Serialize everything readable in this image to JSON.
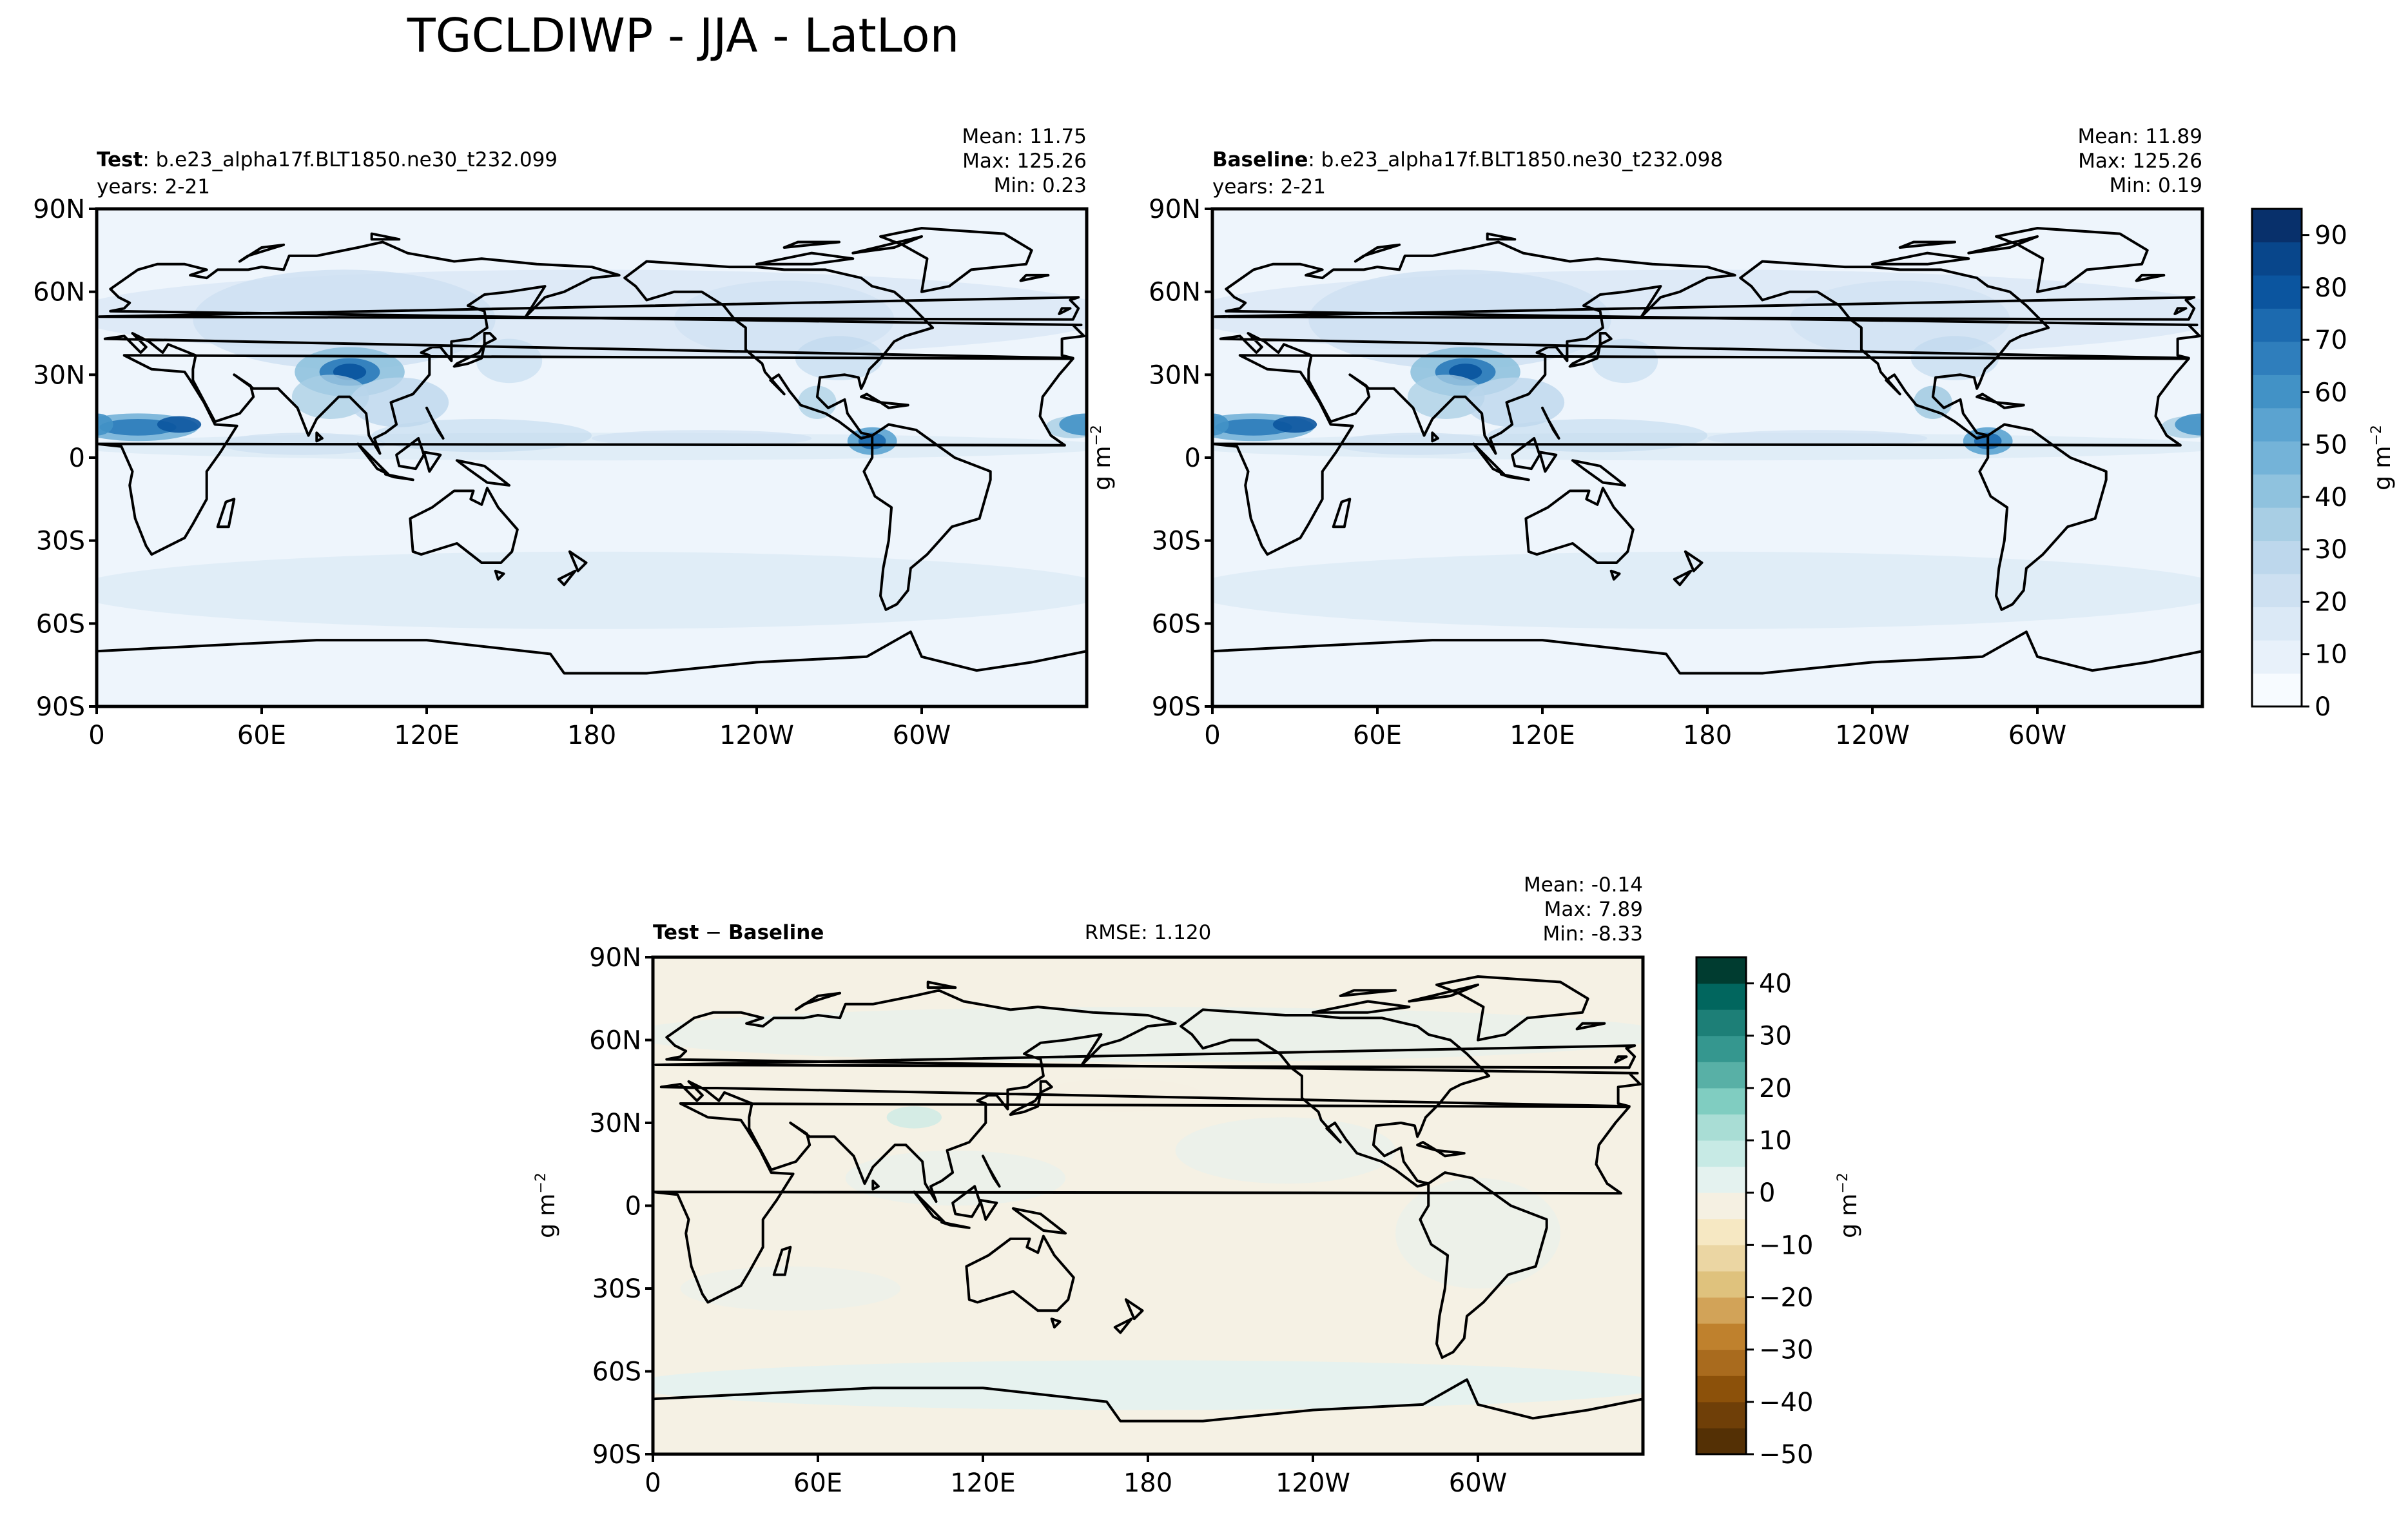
{
  "figure": {
    "title": "TGCLDIWP - JJA - LatLon"
  },
  "colors": {
    "blues": [
      "#f7fbff",
      "#e8f1fa",
      "#dbe9f6",
      "#cde0f1",
      "#bdd7ec",
      "#a8cee4",
      "#8fc2de",
      "#74b3d8",
      "#5ba3d0",
      "#4292c6",
      "#2f7ebc",
      "#1c6aaf",
      "#0b559f",
      "#08468b",
      "#08306b"
    ],
    "diff": [
      "#543005",
      "#6f3f08",
      "#8c510a",
      "#a96b1e",
      "#bf812d",
      "#d2a358",
      "#dfc27d",
      "#ebd6a3",
      "#f6e8c3",
      "#f5f0e2",
      "#e4f2ef",
      "#c7eae5",
      "#a9ddd5",
      "#80cdc1",
      "#58b0a6",
      "#35978f",
      "#1d7f77",
      "#01665e",
      "#003c30"
    ],
    "ocean_test": "#eef5fc",
    "diff_field": "#f5f1e4",
    "coast": "#000000"
  },
  "map_axes": {
    "lat_ticks": [
      "90N",
      "60N",
      "30N",
      "0",
      "30S",
      "60S",
      "90S"
    ],
    "lon_ticks": [
      "0",
      "60E",
      "120E",
      "180",
      "120W",
      "60W"
    ]
  },
  "panels": {
    "test": {
      "label_bold": "Test",
      "label_rest": ": b.e23_alpha17f.BLT1850.ne30_t232.099",
      "years": "years: 2-21",
      "mean": "Mean: 11.75",
      "max": "Max: 125.26",
      "min": "Min:  0.23"
    },
    "baseline": {
      "label_bold": "Baseline",
      "label_rest": ": b.e23_alpha17f.BLT1850.ne30_t232.098",
      "years": "years: 2-21",
      "mean": "Mean: 11.89",
      "max": "Max: 125.26",
      "min": "Min:  0.19"
    },
    "diff": {
      "label_bold_a": "Test",
      "label_sep": " − ",
      "label_bold_b": "Baseline",
      "rmse": "RMSE: 1.120",
      "mean": "Mean: -0.14",
      "max": "Max:  7.89",
      "min": "Min: -8.33"
    }
  },
  "units": {
    "base": "g m",
    "exp": "−2"
  },
  "chart_data": [
    {
      "type": "heatmap",
      "name_in_plot": "Test",
      "variable": "TGCLDIWP",
      "season": "JJA",
      "x_ticks": [
        "0",
        "60E",
        "120E",
        "180",
        "120W",
        "60W"
      ],
      "y_ticks": [
        "90N",
        "60N",
        "30N",
        "0",
        "30S",
        "60S",
        "90S"
      ],
      "stats": {
        "mean": 11.75,
        "max": 125.26,
        "min": 0.23
      }
    },
    {
      "type": "heatmap",
      "name_in_plot": "Baseline",
      "variable": "TGCLDIWP",
      "season": "JJA",
      "x_ticks": [
        "0",
        "60E",
        "120E",
        "180",
        "120W",
        "60W"
      ],
      "y_ticks": [
        "90N",
        "60N",
        "30N",
        "0",
        "30S",
        "60S",
        "90S"
      ],
      "stats": {
        "mean": 11.89,
        "max": 125.26,
        "min": 0.19
      },
      "colorbar": {
        "ticks": [
          0,
          10,
          20,
          30,
          40,
          50,
          60,
          70,
          80,
          90
        ],
        "levels": [
          0,
          5,
          10,
          15,
          20,
          25,
          30,
          35,
          40,
          45,
          50,
          55,
          60,
          65,
          70,
          75,
          80,
          85,
          90,
          95
        ],
        "range": [
          0,
          95
        ]
      }
    },
    {
      "type": "heatmap",
      "name_in_plot": "Test − Baseline",
      "variable": "TGCLDIWP",
      "season": "JJA",
      "x_ticks": [
        "0",
        "60E",
        "120E",
        "180",
        "120W",
        "60W"
      ],
      "y_ticks": [
        "90N",
        "60N",
        "30N",
        "0",
        "30S",
        "60S",
        "90S"
      ],
      "stats": {
        "mean": -0.14,
        "max": 7.89,
        "min": -8.33,
        "rmse": 1.12
      },
      "colorbar": {
        "ticks": [
          -50,
          -40,
          -30,
          -20,
          -10,
          0,
          10,
          20,
          30,
          40
        ],
        "range": [
          -50,
          45
        ]
      }
    }
  ]
}
